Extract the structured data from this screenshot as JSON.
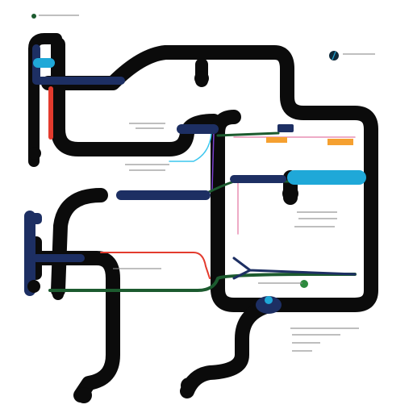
{
  "title": "",
  "legend": {
    "items": [
      {
        "label": "",
        "color": "#1f5a2a"
      }
    ]
  },
  "colors": {
    "black": "#0b0b0b",
    "navy": "#1d2f63",
    "cyan": "#1fa8d8",
    "red": "#e33b2e",
    "green": "#1c5b2f",
    "orange": "#f5a030",
    "pink": "#e98fb4",
    "purple": "#7b3fd0",
    "darkgreen": "#0f3d20"
  },
  "stations": [
    {
      "id": "top-mid",
      "label": ""
    },
    {
      "id": "left-1",
      "label": ""
    },
    {
      "id": "left-2",
      "label": ""
    },
    {
      "id": "left-3",
      "label": ""
    },
    {
      "id": "right-1",
      "label": ""
    },
    {
      "id": "bottom-1",
      "label": ""
    },
    {
      "id": "bottom-2",
      "label": ""
    }
  ],
  "icons": [
    "compass-icon"
  ]
}
